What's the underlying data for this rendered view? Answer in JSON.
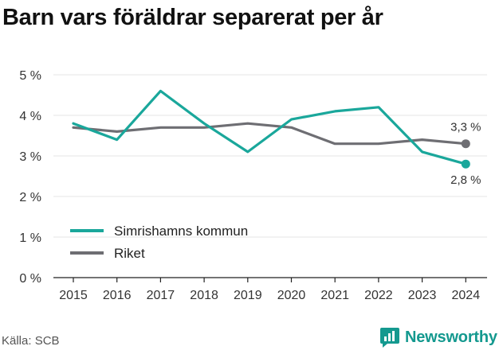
{
  "title": "Barn vars föräldrar separerat per år",
  "source": "Källa: SCB",
  "brand": "Newsworthy",
  "colors": {
    "series_a": "#1aa79b",
    "series_b": "#6e6e73",
    "axis": "#222222",
    "grid": "#e6e6e6",
    "brand": "#14998f"
  },
  "chart_data": {
    "type": "line",
    "x": [
      2015,
      2016,
      2017,
      2018,
      2019,
      2020,
      2021,
      2022,
      2023,
      2024
    ],
    "series": [
      {
        "name": "Simrishamns kommun",
        "values": [
          3.8,
          3.4,
          4.6,
          3.8,
          3.1,
          3.9,
          4.1,
          4.2,
          3.1,
          2.8
        ],
        "end_label": "2,8 %"
      },
      {
        "name": "Riket",
        "values": [
          3.7,
          3.6,
          3.7,
          3.7,
          3.8,
          3.7,
          3.3,
          3.3,
          3.4,
          3.3
        ],
        "end_label": "3,3 %"
      }
    ],
    "y_ticks": [
      0,
      1,
      2,
      3,
      4,
      5
    ],
    "y_tick_labels": [
      "0 %",
      "1 %",
      "2 %",
      "3 %",
      "4 %",
      "5 %"
    ],
    "x_tick_labels": [
      "2015",
      "2016",
      "2017",
      "2018",
      "2019",
      "2020",
      "2021",
      "2022",
      "2023",
      "2024"
    ],
    "ylim": [
      0,
      5
    ],
    "xlabel": "",
    "ylabel": "",
    "legend_position": "bottom-left",
    "grid": true
  }
}
